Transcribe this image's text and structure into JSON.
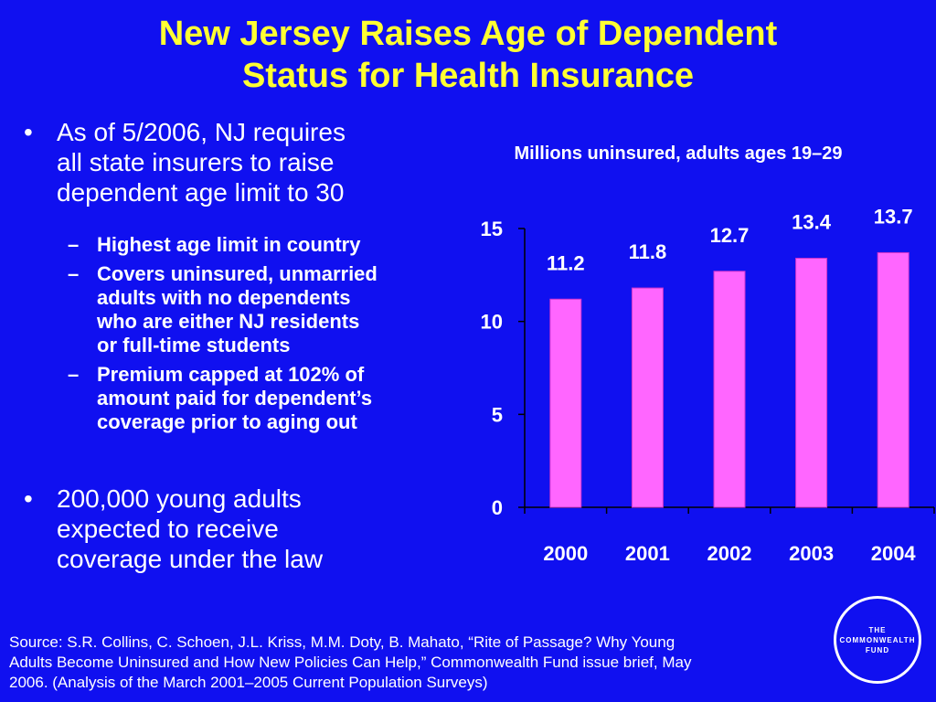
{
  "title": {
    "line1": "New Jersey Raises Age of Dependent",
    "line2": "Status for Health Insurance"
  },
  "bullets": {
    "marker": "•",
    "sub_marker": "–",
    "item1": {
      "line1": "As of 5/2006, NJ requires",
      "line2": "all state insurers to raise",
      "line3": "dependent age limit to 30"
    },
    "subitems": [
      {
        "lines": [
          "Highest age limit in country"
        ]
      },
      {
        "lines": [
          "Covers uninsured, unmarried",
          "adults with no dependents",
          "who are either NJ residents",
          "or full-time students"
        ]
      },
      {
        "lines": [
          "Premium capped at 102% of",
          "amount paid for dependent’s",
          "coverage prior to aging out"
        ]
      }
    ],
    "item2": {
      "line1": "200,000 young adults",
      "line2": "expected to receive",
      "line3": "coverage under the law"
    }
  },
  "chart_data": {
    "type": "bar",
    "title": "Millions uninsured, adults ages 19–29",
    "categories": [
      "2000",
      "2001",
      "2002",
      "2003",
      "2004"
    ],
    "values": [
      11.2,
      11.8,
      12.7,
      13.4,
      13.7
    ],
    "data_labels": [
      "11.2",
      "11.8",
      "12.7",
      "13.4",
      "13.7"
    ],
    "ylim": [
      0,
      15
    ],
    "yticks": [
      "0",
      "5",
      "10",
      "15"
    ],
    "grid": false,
    "legend": "none",
    "bar_color": "#ff66ff",
    "bar_edge_color": "#cc33cc"
  },
  "source": {
    "line1": "Source: S.R. Collins, C. Schoen, J.L. Kriss, M.M. Doty, B. Mahato, “Rite of Passage? Why Young",
    "line2": "Adults Become Uninsured and How New Policies Can Help,” Commonwealth Fund issue brief, May",
    "line3": "2006. (Analysis of the March 2001–2005 Current Population Surveys)"
  },
  "logo": {
    "line1": "THE",
    "line2": "COMMONWEALTH",
    "line3": "FUND"
  },
  "colors": {
    "background": "#1010f0",
    "title": "#ffff33",
    "text": "#ffffff"
  }
}
